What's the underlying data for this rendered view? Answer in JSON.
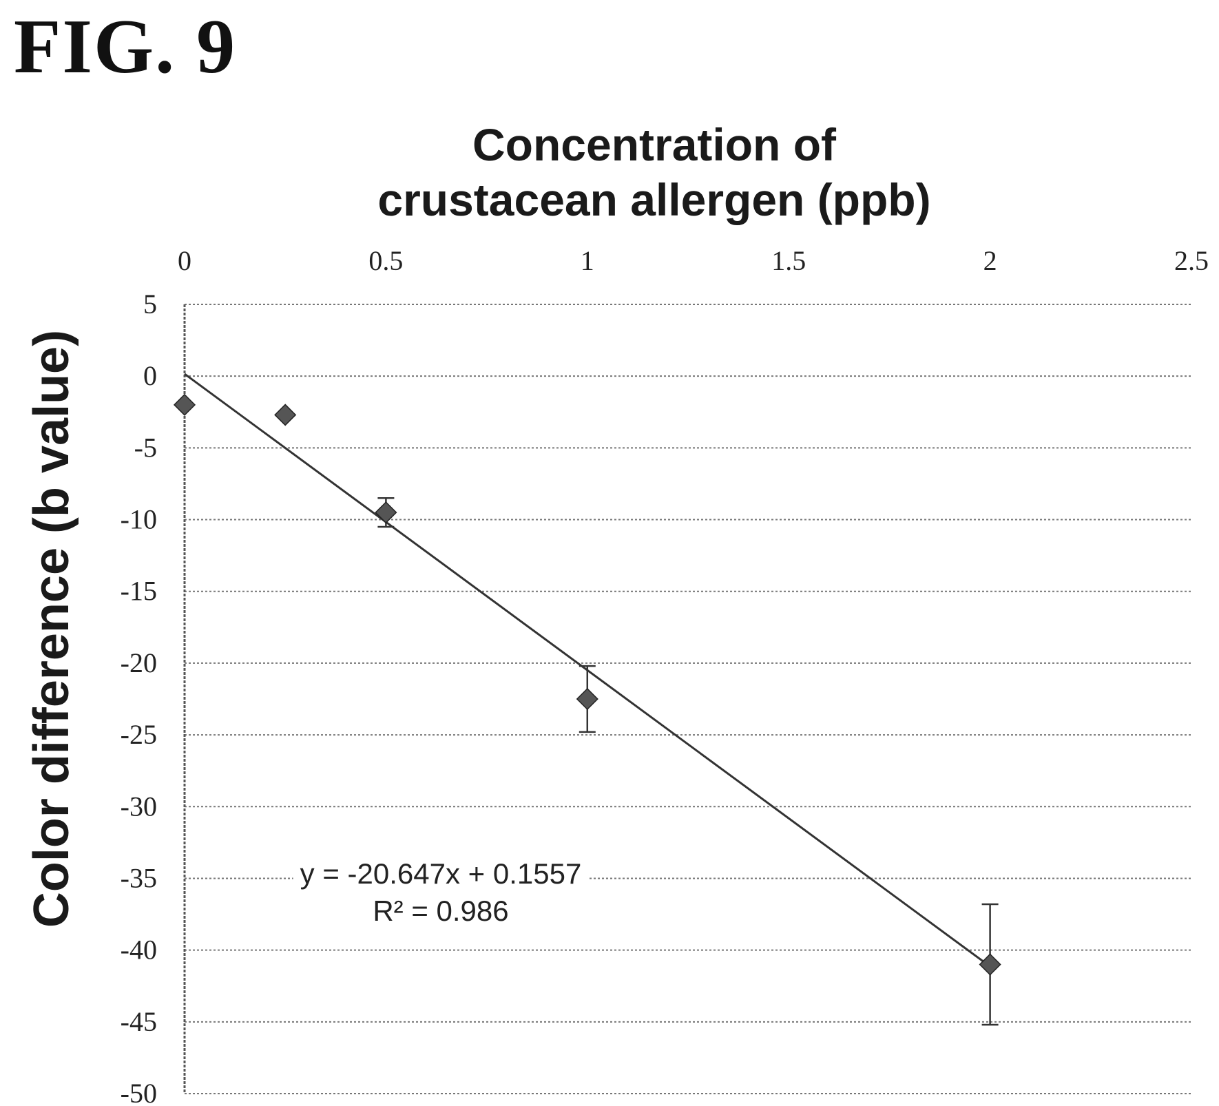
{
  "figure_label": "FIG. 9",
  "chart_data": {
    "type": "scatter",
    "xlabel_lines": [
      "Concentration of",
      "crustacean allergen (ppb)"
    ],
    "ylabel": "Color difference (b value)",
    "xlim": [
      0,
      2.5
    ],
    "ylim": [
      -50,
      5
    ],
    "x_ticks": [
      "0",
      "0.5",
      "1",
      "1.5",
      "2",
      "2.5"
    ],
    "y_ticks": [
      "5",
      "0",
      "-5",
      "-10",
      "-15",
      "-20",
      "-25",
      "-30",
      "-35",
      "-40",
      "-45",
      "-50"
    ],
    "x_axis_position": "top",
    "grid": "horizontal",
    "points": [
      {
        "x": 0,
        "y": -2,
        "err": 0
      },
      {
        "x": 0.25,
        "y": -2.7,
        "err": 0
      },
      {
        "x": 0.5,
        "y": -9.5,
        "err": 1
      },
      {
        "x": 1,
        "y": -22.5,
        "err": 2.3
      },
      {
        "x": 2,
        "y": -41,
        "err": 4.2
      }
    ],
    "trendline": {
      "slope": -20.647,
      "intercept": 0.1557
    },
    "equation": "y = -20.647x + 0.1557",
    "r_squared": "R² = 0.986",
    "marker_color": "#555555",
    "line_color": "#333333"
  }
}
